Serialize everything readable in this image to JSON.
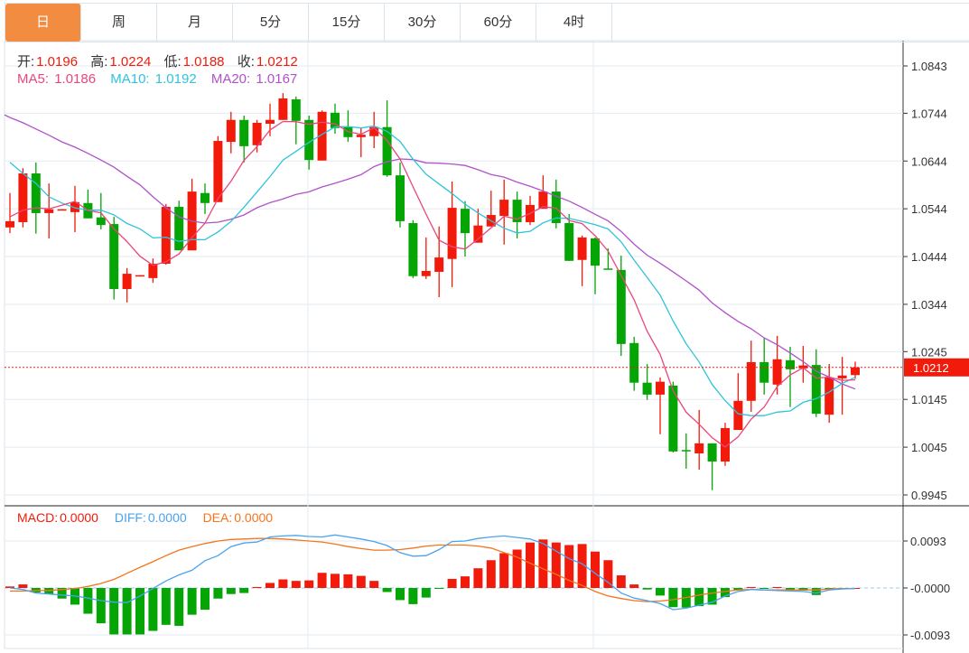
{
  "tabs": [
    {
      "label": "日",
      "active": true
    },
    {
      "label": "周"
    },
    {
      "label": "月"
    },
    {
      "label": "5分"
    },
    {
      "label": "15分"
    },
    {
      "label": "30分"
    },
    {
      "label": "60分"
    },
    {
      "label": "4时"
    }
  ],
  "ohlc_info": {
    "open_label": "开:",
    "open": "1.0196",
    "high_label": "高:",
    "high": "1.0224",
    "low_label": "低:",
    "low": "1.0188",
    "close_label": "收:",
    "close": "1.0212"
  },
  "ma_info": {
    "ma5_label": "MA5:",
    "ma5": "1.0186",
    "ma10_label": "MA10:",
    "ma10": "1.0192",
    "ma20_label": "MA20:",
    "ma20": "1.0167"
  },
  "macd_info": {
    "macd_label": "MACD:",
    "macd": "0.0000",
    "diff_label": "DIFF:",
    "diff": "0.0000",
    "dea_label": "DEA:",
    "dea": "0.0000"
  },
  "colors": {
    "up": "#f21a0a",
    "down": "#05a505",
    "ma5": "#e8477c",
    "ma10": "#2fc3dc",
    "ma20": "#b052c8",
    "diff": "#4aa3f0",
    "dea": "#f5741c",
    "accent": "#f28c40"
  },
  "chart_data": [
    {
      "type": "candlestick",
      "title": "Daily",
      "price_ticks": [
        "1.0843",
        "1.0744",
        "1.0644",
        "1.0544",
        "1.0444",
        "1.0344",
        "1.0245",
        "1.0145",
        "1.0045",
        "0.9945"
      ],
      "ylim": [
        0.9945,
        1.0843
      ],
      "current_price": "1.0212",
      "candles": [
        [
          1.0505,
          1.0577,
          1.0493,
          1.0518
        ],
        [
          1.0516,
          1.0629,
          1.0505,
          1.0618
        ],
        [
          1.0618,
          1.0641,
          1.0492,
          1.0535
        ],
        [
          1.0535,
          1.0597,
          1.0482,
          1.0543
        ],
        [
          1.0541,
          1.0543,
          1.0541,
          1.0543
        ],
        [
          1.0537,
          1.0592,
          1.0495,
          1.0558
        ],
        [
          1.0556,
          1.0584,
          1.0524,
          1.0524
        ],
        [
          1.0526,
          1.0577,
          1.0501,
          1.051
        ],
        [
          1.0512,
          1.0527,
          1.0354,
          1.0376
        ],
        [
          1.0376,
          1.042,
          1.0348,
          1.0408
        ],
        [
          1.0404,
          1.0405,
          1.0404,
          1.0405
        ],
        [
          1.0399,
          1.044,
          1.0389,
          1.0429
        ],
        [
          1.0429,
          1.0554,
          1.0427,
          1.0548
        ],
        [
          1.0548,
          1.0561,
          1.0457,
          1.0457
        ],
        [
          1.0457,
          1.0607,
          1.0457,
          1.058
        ],
        [
          1.0577,
          1.0597,
          1.0533,
          1.0556
        ],
        [
          1.0558,
          1.0696,
          1.0558,
          1.0686
        ],
        [
          1.0684,
          1.0747,
          1.066,
          1.073
        ],
        [
          1.073,
          1.0739,
          1.0641,
          1.0675
        ],
        [
          1.0677,
          1.073,
          1.0662,
          1.0724
        ],
        [
          1.0722,
          1.0764,
          1.0696,
          1.073
        ],
        [
          1.073,
          1.0786,
          1.073,
          1.0775
        ],
        [
          1.0773,
          1.0779,
          1.0679,
          1.0728
        ],
        [
          1.073,
          1.0739,
          1.0626,
          1.0646
        ],
        [
          1.0645,
          1.075,
          1.0645,
          1.0747
        ],
        [
          1.0745,
          1.0764,
          1.0701,
          1.0713
        ],
        [
          1.0715,
          1.075,
          1.0684,
          1.0694
        ],
        [
          1.0694,
          1.0713,
          1.0652,
          1.0699
        ],
        [
          1.0696,
          1.0747,
          1.0671,
          1.0715
        ],
        [
          1.0715,
          1.0771,
          1.0611,
          1.0614
        ],
        [
          1.0614,
          1.0641,
          1.0505,
          1.0518
        ],
        [
          1.0514,
          1.052,
          1.0399,
          1.0403
        ],
        [
          1.0403,
          1.0484,
          1.0397,
          1.0414
        ],
        [
          1.0412,
          1.0507,
          1.0359,
          1.0442
        ],
        [
          1.0439,
          1.0601,
          1.038,
          1.0546
        ],
        [
          1.0544,
          1.056,
          1.0444,
          1.0493
        ],
        [
          1.0473,
          1.0544,
          1.0473,
          1.0509
        ],
        [
          1.0507,
          1.0582,
          1.0507,
          1.0531
        ],
        [
          1.0529,
          1.0605,
          1.0469,
          1.0563
        ],
        [
          1.0563,
          1.058,
          1.0482,
          1.0516
        ],
        [
          1.0516,
          1.0571,
          1.051,
          1.0552
        ],
        [
          1.0544,
          1.0614,
          1.0544,
          1.058
        ],
        [
          1.058,
          1.0605,
          1.0503,
          1.0514
        ],
        [
          1.0514,
          1.0533,
          1.0435,
          1.0435
        ],
        [
          1.0437,
          1.0488,
          1.0382,
          1.0484
        ],
        [
          1.0482,
          1.0484,
          1.0365,
          1.0425
        ],
        [
          1.0419,
          1.0461,
          1.0418,
          1.0418
        ],
        [
          1.0416,
          1.0446,
          1.0236,
          1.0261
        ],
        [
          1.0263,
          1.0276,
          1.0163,
          1.018
        ],
        [
          1.018,
          1.0219,
          1.0144,
          1.0155
        ],
        [
          1.0155,
          1.0191,
          1.0072,
          1.0182
        ],
        [
          1.0174,
          1.0182,
          1.0034,
          1.0036
        ],
        [
          1.0039,
          1.0074,
          1.0,
          1.0038
        ],
        [
          1.0032,
          1.0123,
          0.9998,
          1.0053
        ],
        [
          1.0053,
          1.0053,
          0.9955,
          1.0015
        ],
        [
          1.0015,
          1.0096,
          1.0006,
          1.0085
        ],
        [
          1.0081,
          1.02,
          1.0081,
          1.0142
        ],
        [
          1.0142,
          1.0268,
          1.0119,
          1.0223
        ],
        [
          1.0223,
          1.0274,
          1.0155,
          1.018
        ],
        [
          1.0176,
          1.0278,
          1.0155,
          1.0229
        ],
        [
          1.0227,
          1.0255,
          1.0129,
          1.0208
        ],
        [
          1.021,
          1.0257,
          1.018,
          1.0216
        ],
        [
          1.0217,
          1.025,
          1.0108,
          1.0115
        ],
        [
          1.0113,
          1.0219,
          1.0096,
          1.0191
        ],
        [
          1.0189,
          1.0234,
          1.0113,
          1.0195
        ],
        [
          1.0196,
          1.0224,
          1.0188,
          1.0212
        ]
      ],
      "candle_fields": [
        "open",
        "high",
        "low",
        "close"
      ],
      "ma5_head": [
        1.0527,
        1.0541,
        1.0546,
        1.0544
      ],
      "ma10_head": [
        1.0641,
        1.0618,
        1.0597,
        1.0569,
        1.0556,
        1.0546,
        1.0541,
        1.0541,
        1.0531
      ],
      "ma20_head": [
        1.0735,
        1.0724,
        1.0711,
        1.0698,
        1.0684,
        1.0673,
        1.066,
        1.0646,
        1.0631,
        1.0612,
        1.0594,
        1.0569,
        1.0546,
        1.0527,
        1.0518,
        1.0514,
        1.0516,
        1.0522,
        1.0531
      ]
    },
    {
      "type": "macd",
      "ticks": [
        "0.0093",
        "-0.0000",
        "-0.0093"
      ],
      "ylim": [
        -0.0093,
        0.0093
      ],
      "histogram": [
        0.0003,
        0.0007,
        -0.0009,
        -0.0012,
        -0.0021,
        -0.0033,
        -0.0051,
        -0.007,
        -0.0092,
        -0.0092,
        -0.0092,
        -0.0085,
        -0.0073,
        -0.0075,
        -0.0053,
        -0.0043,
        -0.0021,
        -0.0012,
        -0.001,
        0.0002,
        0.001,
        0.0017,
        0.0014,
        0.0015,
        0.003,
        0.0028,
        0.0027,
        0.0024,
        0.0014,
        -0.0008,
        -0.0024,
        -0.0032,
        -0.0019,
        -0.0001,
        0.0018,
        0.0023,
        0.0039,
        0.0055,
        0.0069,
        0.0076,
        0.009,
        0.0096,
        0.009,
        0.0085,
        0.0087,
        0.0072,
        0.0055,
        0.0025,
        0.0007,
        -0.0003,
        -0.0015,
        -0.0038,
        -0.0039,
        -0.0036,
        -0.0033,
        -0.0018,
        -0.0004,
        0.0002,
        -0.0001,
        0.0002,
        -0.0004,
        -0.0005,
        -0.0014,
        -0.0003,
        -0.0001,
        0.0
      ],
      "diff": [
        0,
        -0.0003,
        -0.001,
        -0.0012,
        -0.0014,
        -0.0016,
        -0.002,
        -0.0025,
        -0.0028,
        -0.0029,
        -0.0016,
        -0.0001,
        0.0014,
        0.0026,
        0.0035,
        0.0054,
        0.0064,
        0.0082,
        0.0089,
        0.0091,
        0.0101,
        0.0103,
        0.0104,
        0.0102,
        0.0101,
        0.0105,
        0.0101,
        0.0097,
        0.0092,
        0.0084,
        0.007,
        0.0063,
        0.0064,
        0.0076,
        0.0092,
        0.0093,
        0.0098,
        0.0101,
        0.0103,
        0.01,
        0.0097,
        0.0088,
        0.0073,
        0.0058,
        0.0048,
        0.0029,
        0.0011,
        -0.001,
        -0.002,
        -0.0025,
        -0.0031,
        -0.0043,
        -0.004,
        -0.0034,
        -0.0028,
        -0.0016,
        -0.0007,
        -0.0003,
        -0.0004,
        -0.0005,
        -0.0006,
        -0.0007,
        -0.001,
        -0.0004,
        -0.0002,
        -0.0001
      ],
      "dea": [
        -0.0006,
        -0.0006,
        -0.0005,
        -0.0005,
        -0.0003,
        -0.0001,
        0.0003,
        0.0009,
        0.0017,
        0.0029,
        0.0041,
        0.0052,
        0.0064,
        0.0075,
        0.0082,
        0.0088,
        0.0093,
        0.0096,
        0.0097,
        0.0098,
        0.0098,
        0.0097,
        0.0095,
        0.0093,
        0.0091,
        0.0087,
        0.0082,
        0.0078,
        0.0075,
        0.0075,
        0.0076,
        0.0079,
        0.0083,
        0.0085,
        0.0085,
        0.0085,
        0.0083,
        0.0079,
        0.007,
        0.0061,
        0.0049,
        0.0038,
        0.0027,
        0.0015,
        0.0005,
        -0.0007,
        -0.0016,
        -0.0021,
        -0.0025,
        -0.0027,
        -0.0026,
        -0.0023,
        -0.0019,
        -0.0014,
        -0.001,
        -0.0007,
        -0.0004,
        -0.0003,
        -0.0004,
        -0.0004,
        -0.0004,
        -0.0004,
        -0.0004,
        -0.0002,
        -0.0001,
        -0.0001
      ]
    }
  ]
}
